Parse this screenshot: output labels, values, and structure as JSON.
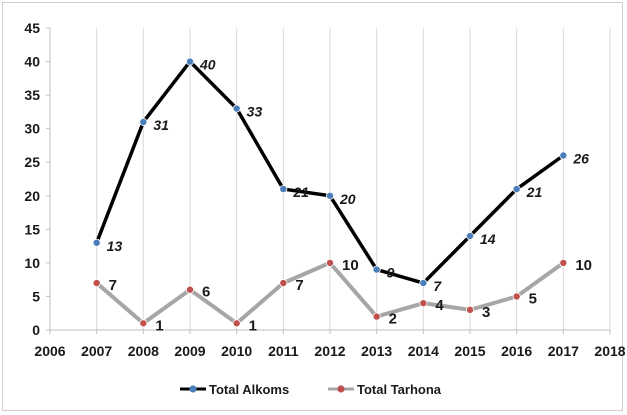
{
  "chart_data": {
    "type": "line",
    "title": "",
    "xlabel": "",
    "ylabel": "",
    "xlim": [
      2006,
      2018
    ],
    "ylim": [
      0,
      45
    ],
    "x_ticks": [
      2006,
      2007,
      2008,
      2009,
      2010,
      2011,
      2012,
      2013,
      2014,
      2015,
      2016,
      2017,
      2018
    ],
    "y_ticks": [
      0,
      5,
      10,
      15,
      20,
      25,
      30,
      35,
      40,
      45
    ],
    "grid": true,
    "legend_position": "bottom",
    "x": [
      2007,
      2008,
      2009,
      2010,
      2011,
      2012,
      2013,
      2014,
      2015,
      2016,
      2017
    ],
    "series": [
      {
        "name": "Total Alkoms",
        "values": [
          13,
          31,
          40,
          33,
          21,
          20,
          9,
          7,
          14,
          21,
          26
        ],
        "line_color": "#000000",
        "marker_color": "#4a7ebb"
      },
      {
        "name": "Total Tarhona",
        "values": [
          7,
          1,
          6,
          1,
          7,
          10,
          2,
          4,
          3,
          5,
          10
        ],
        "line_color": "#a6a6a6",
        "marker_color": "#c0504d"
      }
    ]
  }
}
